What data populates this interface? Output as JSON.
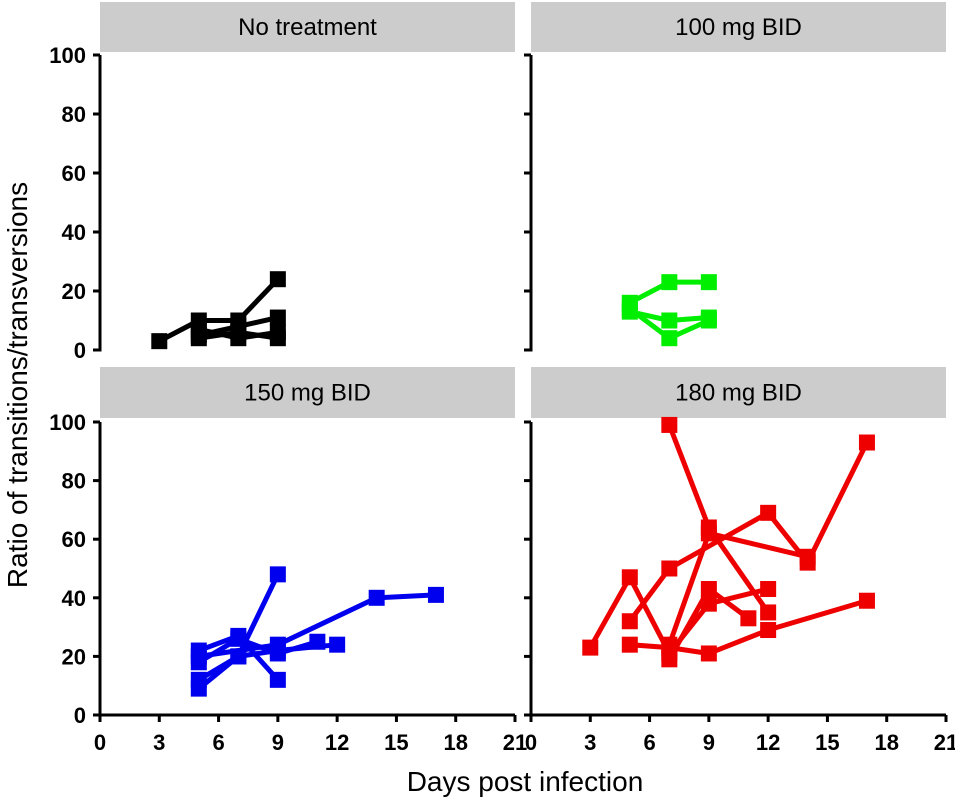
{
  "figure": {
    "xlabel": "Days post infection",
    "ylabel": "Ratio of transitions/transversions"
  },
  "chart_data": {
    "type": "line",
    "facets": true,
    "xlabel": "Days post infection",
    "ylabel": "Ratio of transitions/transversions",
    "xlim": [
      0,
      21
    ],
    "ylim": [
      0,
      100
    ],
    "xticks": [
      0,
      3,
      6,
      9,
      12,
      15,
      18,
      21
    ],
    "yticks": [
      0,
      20,
      40,
      60,
      80,
      100
    ],
    "marker": "square",
    "panels": [
      {
        "title": "No treatment",
        "color": "#000000",
        "series": [
          {
            "x": [
              3,
              5,
              7,
              9
            ],
            "y": [
              3,
              10,
              10,
              24
            ]
          },
          {
            "x": [
              5,
              7,
              9
            ],
            "y": [
              5,
              8,
              11
            ]
          },
          {
            "x": [
              5,
              7,
              9
            ],
            "y": [
              7,
              4,
              6
            ]
          },
          {
            "x": [
              5,
              7,
              9
            ],
            "y": [
              4,
              6,
              4
            ]
          }
        ]
      },
      {
        "title": "100 mg BID",
        "color": "#00ee00",
        "series": [
          {
            "x": [
              5,
              7,
              9
            ],
            "y": [
              16,
              23,
              23
            ]
          },
          {
            "x": [
              5,
              7,
              9
            ],
            "y": [
              13,
              10,
              11
            ]
          },
          {
            "x": [
              5,
              7,
              9
            ],
            "y": [
              14,
              4,
              10
            ]
          }
        ]
      },
      {
        "title": "150 mg BID",
        "color": "#0000ee",
        "series": [
          {
            "x": [
              5,
              7,
              9
            ],
            "y": [
              22,
              27,
              12
            ]
          },
          {
            "x": [
              5,
              7,
              9
            ],
            "y": [
              12,
              20,
              48
            ]
          },
          {
            "x": [
              5,
              7,
              9,
              12
            ],
            "y": [
              9,
              20,
              22,
              24
            ]
          },
          {
            "x": [
              5,
              7,
              9,
              11
            ],
            "y": [
              18,
              26,
              21,
              25
            ]
          },
          {
            "x": [
              5,
              9,
              14,
              17
            ],
            "y": [
              20,
              24,
              40,
              41
            ]
          }
        ]
      },
      {
        "title": "180 mg BID",
        "color": "#ee0000",
        "series": [
          {
            "x": [
              3,
              5,
              7,
              9,
              12
            ],
            "y": [
              23,
              47,
              21,
              38,
              43
            ]
          },
          {
            "x": [
              5,
              7,
              9,
              12,
              17
            ],
            "y": [
              24,
              23,
              21,
              29,
              39
            ]
          },
          {
            "x": [
              5,
              7,
              12,
              14,
              17
            ],
            "y": [
              32,
              50,
              69,
              52,
              93
            ]
          },
          {
            "x": [
              7,
              9,
              12
            ],
            "y": [
              99,
              64,
              35
            ]
          },
          {
            "x": [
              7,
              9,
              11
            ],
            "y": [
              19,
              43,
              33
            ]
          },
          {
            "x": [
              7,
              9,
              14
            ],
            "y": [
              24,
              62,
              54
            ]
          }
        ]
      }
    ]
  }
}
